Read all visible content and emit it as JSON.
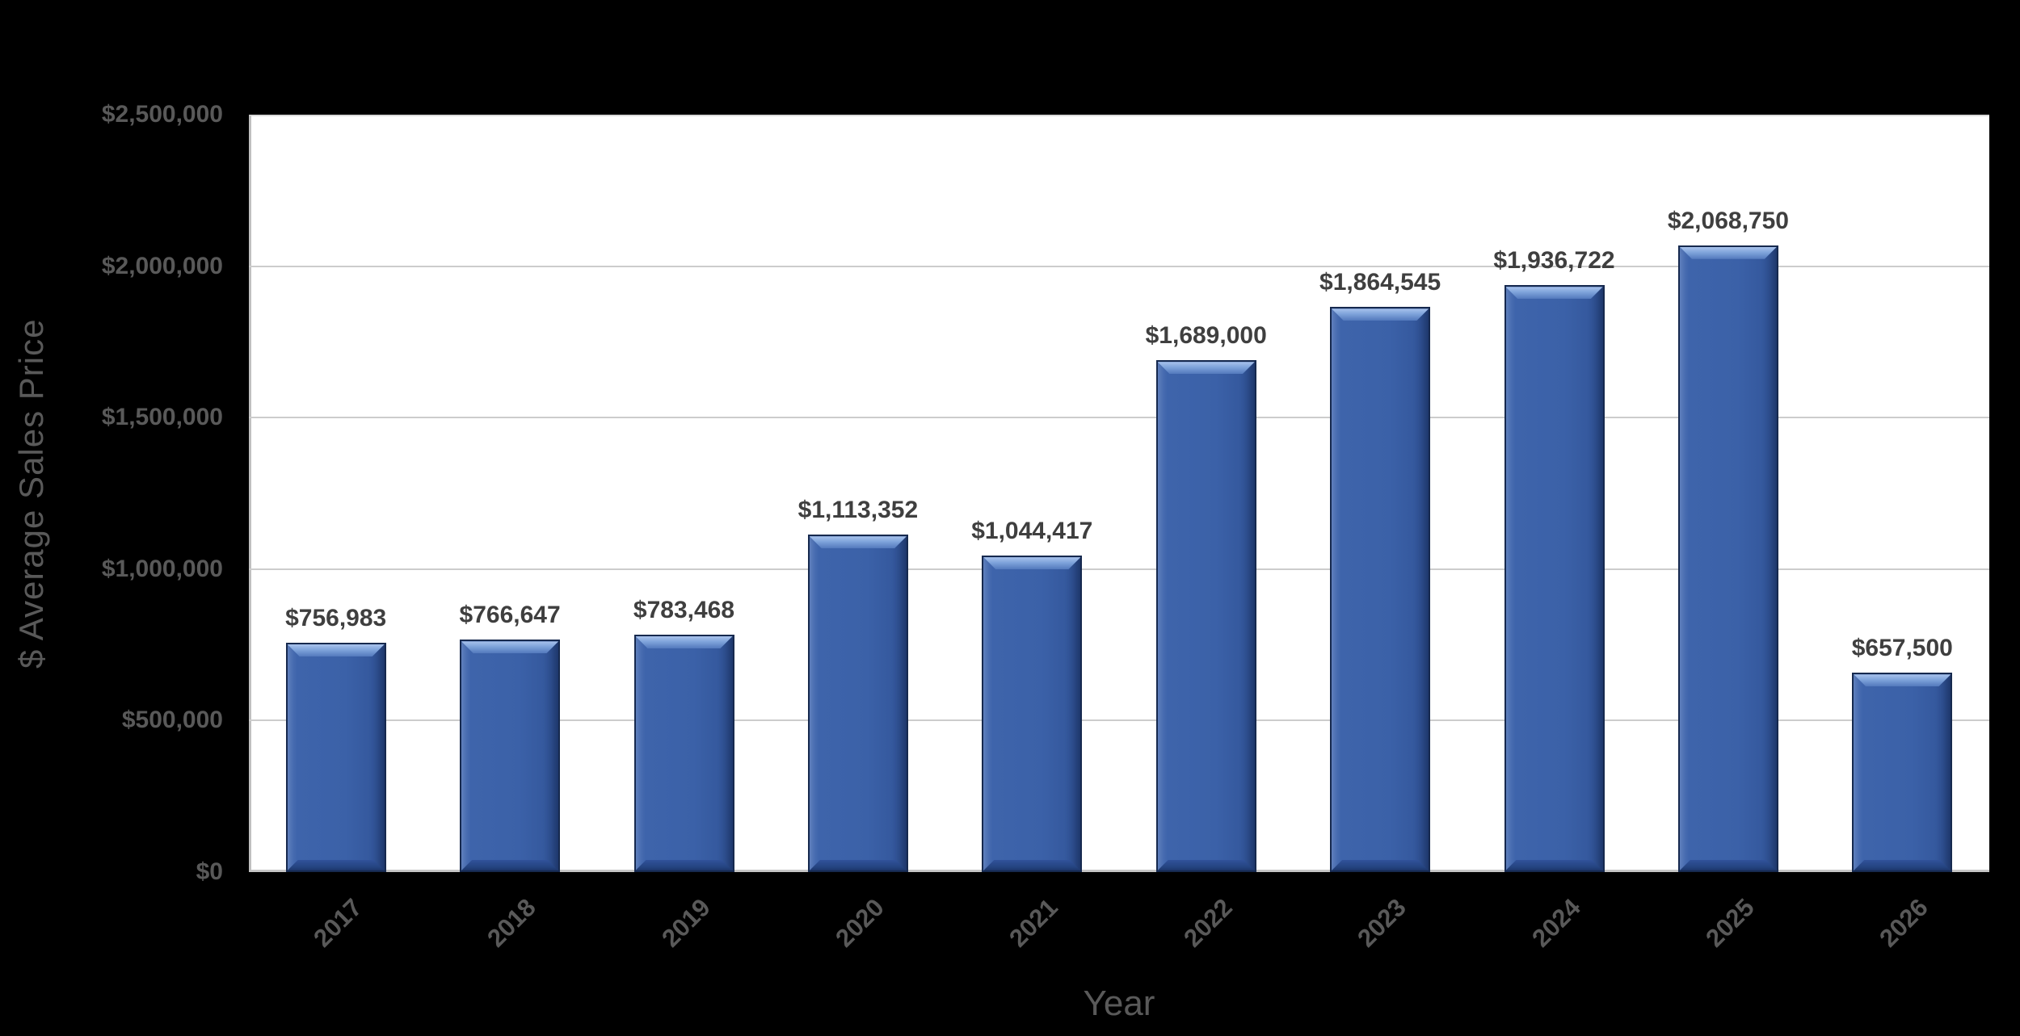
{
  "chart_data": {
    "type": "bar",
    "title": "",
    "xlabel": "Year",
    "ylabel": "$ Average Sales Price",
    "categories": [
      "2017",
      "2018",
      "2019",
      "2020",
      "2021",
      "2022",
      "2023",
      "2024",
      "2025",
      "2026"
    ],
    "values": [
      756983,
      766647,
      783468,
      1113352,
      1044417,
      1689000,
      1864545,
      1936722,
      2068750,
      657500
    ],
    "data_labels": [
      "$756,983",
      "$766,647",
      "$783,468",
      "$1,113,352",
      "$1,044,417",
      "$1,689,000",
      "$1,864,545",
      "$1,936,722",
      "$2,068,750",
      "$657,500"
    ],
    "y_ticks": [
      {
        "value": 0,
        "label": "$0"
      },
      {
        "value": 500000,
        "label": "$500,000"
      },
      {
        "value": 1000000,
        "label": "$1,000,000"
      },
      {
        "value": 1500000,
        "label": "$1,500,000"
      },
      {
        "value": 2000000,
        "label": "$2,000,000"
      },
      {
        "value": 2500000,
        "label": "$2,500,000"
      }
    ],
    "ylim": [
      0,
      2500000
    ],
    "grid": true,
    "legend": false,
    "colors": {
      "background": "#000000",
      "plot_background": "#FFFFFF",
      "bar_fill": "#3B61A8",
      "bar_bevel_light": "#7FA4DB",
      "bar_outline": "#16294E",
      "gridline": "#CCCCCC",
      "axis_line": "#BFBFBF",
      "tick_text": "#595959",
      "data_label_text": "#3F3F3F"
    }
  }
}
